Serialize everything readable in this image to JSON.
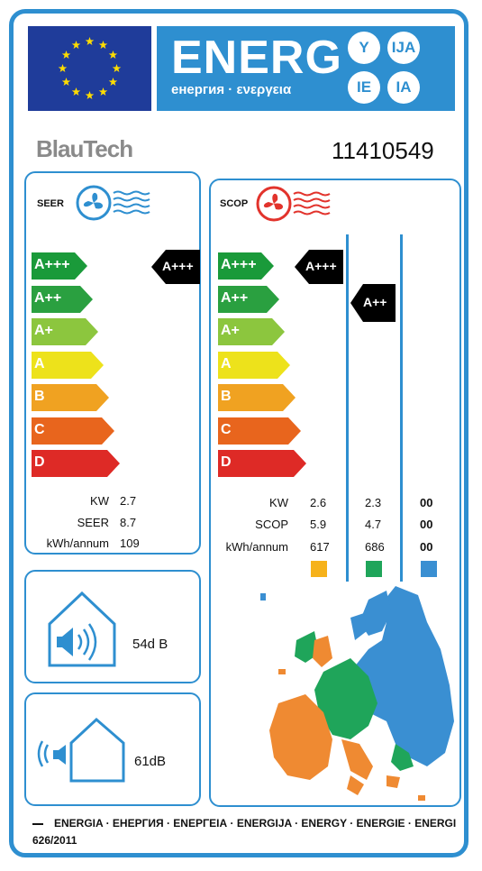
{
  "header": {
    "energ": "ENERG",
    "subtitle": "енергия · ενεργεια",
    "suffixes": [
      "Y",
      "IJA",
      "IE",
      "IA"
    ]
  },
  "brand": "BlauTech",
  "model": "11410549",
  "classes": [
    "A+++",
    "A++",
    "A+",
    "A",
    "B",
    "C",
    "D"
  ],
  "class_colors": [
    "#1a9a3a",
    "#2aa040",
    "#8cc63e",
    "#ede21b",
    "#f0a221",
    "#e8651d",
    "#de2a26"
  ],
  "seer": {
    "title": "SEER",
    "rating": "A+++",
    "rows": [
      {
        "label": "KW",
        "value": "2.7"
      },
      {
        "label": "SEER",
        "value": "8.7"
      },
      {
        "label": "kWh/annum",
        "value": "109"
      }
    ]
  },
  "scop": {
    "title": "SCOP",
    "rating_warm": "A+++",
    "rating_average": "A++",
    "labels": [
      "KW",
      "SCOP",
      "kWh/annum"
    ],
    "columns": [
      {
        "values": [
          "2.6",
          "5.9",
          "617"
        ],
        "color": "#f6b21b"
      },
      {
        "values": [
          "2.3",
          "4.7",
          "686"
        ],
        "color": "#1fa55a"
      },
      {
        "values": [
          "00",
          "00",
          "00"
        ],
        "color": "#3a8fd2"
      }
    ]
  },
  "noise": {
    "indoor": "54d B",
    "outdoor": "61dB"
  },
  "footer": {
    "languages": "ENERGIA · ЕНЕРГИЯ · ΕΝΕΡΓΕΙΑ · ENERGIJA · ENERGY · ENERGIE · ENERGI",
    "regulation": "626/2011"
  },
  "colors": {
    "frame": "#2e8fd0",
    "eu_blue": "#1f3c9a",
    "star": "#ffdd00",
    "cooling_fan": "#2e8fd0",
    "heating_fan": "#e2332c"
  },
  "icons": [
    "eu-flag-icon",
    "cooling-fan-icon",
    "heating-fan-icon",
    "indoor-speaker-icon",
    "outdoor-speaker-icon",
    "europe-map-icon"
  ]
}
